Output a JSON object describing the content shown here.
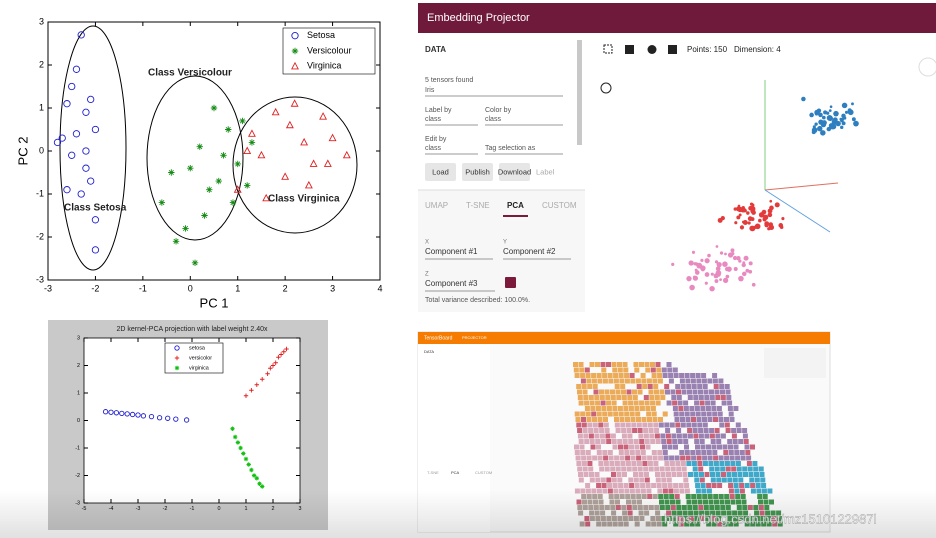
{
  "chart_data": [
    {
      "type": "scatter",
      "xlabel": "PC 1",
      "ylabel": "PC 2",
      "xlim": [
        -3,
        4
      ],
      "ylim": [
        -3,
        3
      ],
      "xticks": [
        -3,
        -2,
        -1,
        0,
        1,
        2,
        3,
        4
      ],
      "yticks": [
        -3,
        -2,
        -1,
        0,
        1,
        2,
        3
      ],
      "legend": "upper right",
      "series": [
        {
          "name": "Setosa",
          "color": "#1f1fd0",
          "marker": "circle",
          "x": [
            -2.7,
            -2.5,
            -2.3,
            -2.2,
            -2.1,
            -2.0,
            -2.6,
            -2.4,
            -2.8,
            -2.2,
            -2.0,
            -2.3,
            -2.5,
            -2.1,
            -2.4,
            -2.2,
            -2.6,
            -2.0
          ],
          "values": [
            0.3,
            1.5,
            2.7,
            0.9,
            -0.7,
            -2.3,
            -0.9,
            1.9,
            0.2,
            0.0,
            0.5,
            -1.0,
            -0.1,
            1.2,
            0.4,
            -0.4,
            1.1,
            -1.6
          ]
        },
        {
          "name": "Versicolour",
          "color": "#148c14",
          "marker": "star",
          "x": [
            -0.6,
            -0.4,
            -0.3,
            0.0,
            0.1,
            0.2,
            0.3,
            0.5,
            0.6,
            0.8,
            0.9,
            1.0,
            1.2,
            1.3,
            -0.1,
            0.4,
            0.7,
            1.1
          ],
          "values": [
            -1.2,
            -0.5,
            -2.1,
            -0.4,
            -2.6,
            0.1,
            -1.5,
            1.0,
            -0.7,
            0.5,
            -1.2,
            -0.3,
            -0.8,
            0.2,
            -1.8,
            -0.9,
            -0.1,
            0.7
          ]
        },
        {
          "name": "Virginica",
          "color": "#e02020",
          "marker": "triangle",
          "x": [
            1.0,
            1.3,
            1.5,
            1.8,
            2.0,
            2.2,
            2.4,
            2.6,
            2.8,
            3.0,
            3.3,
            1.6,
            2.1,
            2.5,
            1.2,
            2.9
          ],
          "values": [
            -0.9,
            0.4,
            -0.1,
            0.9,
            -0.6,
            1.1,
            0.2,
            -0.3,
            0.8,
            0.3,
            -0.1,
            -1.1,
            0.6,
            -0.8,
            0.0,
            -0.3
          ]
        }
      ],
      "annotations": [
        "Class Versicolour",
        "Class Setosa",
        "Class Virginica"
      ]
    },
    {
      "type": "scatter",
      "title": "2D kernel-PCA projection with label weight 2.40x",
      "xlim": [
        -5,
        3
      ],
      "ylim": [
        -3,
        3
      ],
      "xticks": [
        -5,
        -4,
        -3,
        -2,
        -1,
        0,
        1,
        2,
        3
      ],
      "yticks": [
        -3,
        -2,
        -1,
        0,
        1,
        2,
        3
      ],
      "legend": "upper center",
      "series": [
        {
          "name": "setosa",
          "color": "#1f1fd0",
          "marker": "circle",
          "x": [
            -4.2,
            -4.0,
            -3.8,
            -3.6,
            -3.4,
            -3.2,
            -3.0,
            -2.8,
            -2.5,
            -2.2,
            -1.9,
            -1.6,
            -1.2
          ],
          "values": [
            0.32,
            0.3,
            0.28,
            0.26,
            0.24,
            0.22,
            0.2,
            0.17,
            0.14,
            0.1,
            0.08,
            0.05,
            0.02
          ]
        },
        {
          "name": "versicolor",
          "color": "#e02020",
          "marker": "plus",
          "x": [
            1.0,
            1.2,
            1.4,
            1.6,
            1.8,
            1.9,
            2.0,
            2.1,
            2.2,
            2.3,
            2.4,
            2.5
          ],
          "values": [
            0.9,
            1.1,
            1.3,
            1.5,
            1.7,
            1.9,
            2.0,
            2.1,
            2.3,
            2.4,
            2.5,
            2.6
          ]
        },
        {
          "name": "virginica",
          "color": "#10c010",
          "marker": "star",
          "x": [
            0.5,
            0.6,
            0.7,
            0.8,
            0.9,
            1.0,
            1.1,
            1.2,
            1.3,
            1.4,
            1.5,
            1.6
          ],
          "values": [
            -0.3,
            -0.6,
            -0.8,
            -1.0,
            -1.2,
            -1.4,
            -1.6,
            -1.8,
            -2.0,
            -2.1,
            -2.3,
            -2.4
          ]
        }
      ]
    }
  ],
  "projector": {
    "title": "Embedding Projector",
    "section": "DATA",
    "tensors": "5 tensors found",
    "dataset": "Iris",
    "label_by": "Label by",
    "label_value": "class",
    "color_by": "Color by",
    "color_value": "class",
    "edit_by": "Edit by",
    "edit_value": "class",
    "tag": "Tag selection as",
    "buttons": [
      "Load",
      "Publish",
      "Download",
      "Label"
    ],
    "tabs": [
      "UMAP",
      "T-SNE",
      "PCA",
      "CUSTOM"
    ],
    "axes": [
      [
        "X",
        "Component #1"
      ],
      [
        "Y",
        "Component #2"
      ],
      [
        "Z",
        "Component #3"
      ]
    ],
    "variance": "Total variance described: 100.0%.",
    "points": "Points: 150",
    "dimension": "Dimension: 4"
  },
  "tensorboard": {
    "title": "TensorBoard",
    "tab": "PROJECTOR",
    "section": "DATA",
    "tabs": [
      "T-SNE",
      "PCA",
      "CUSTOM"
    ]
  },
  "watermark": "https://blog.csdn.net/mz1510122987l"
}
